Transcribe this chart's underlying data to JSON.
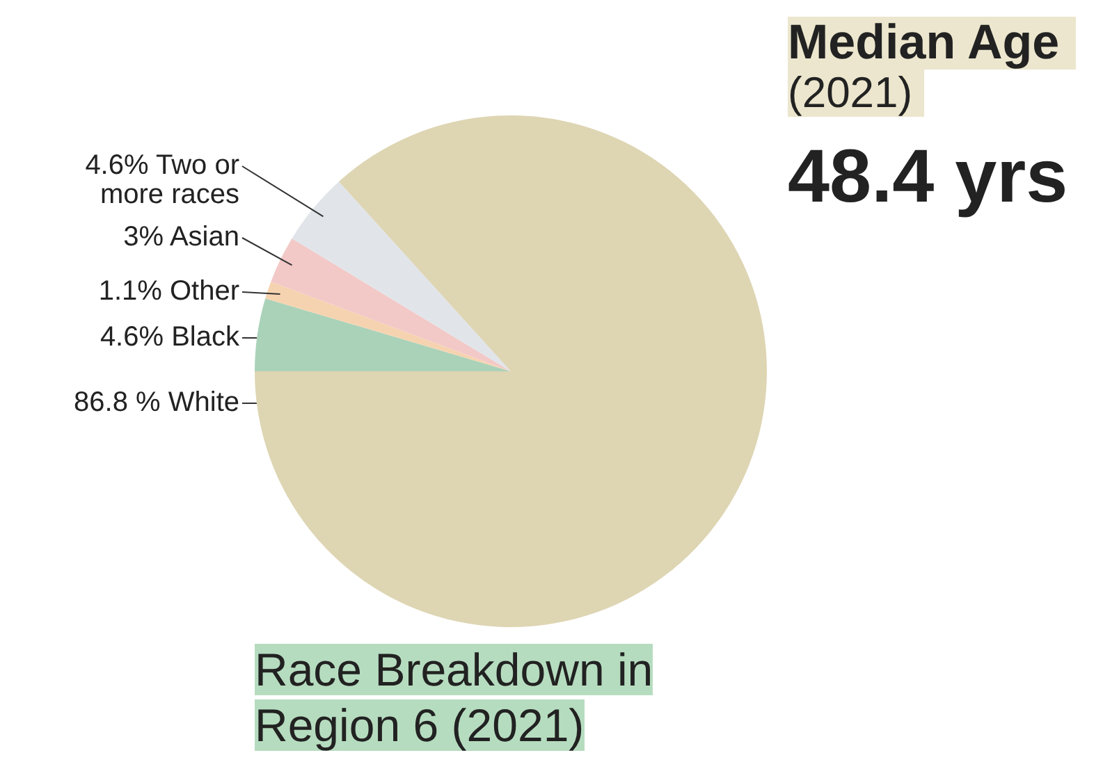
{
  "chart_data": {
    "type": "pie",
    "title": "Race Breakdown in Region 6 (2021)",
    "categories": [
      "Black",
      "Other",
      "Asian",
      "Two or more races",
      "White"
    ],
    "values": [
      4.6,
      1.1,
      3,
      4.6,
      86.8
    ],
    "value_labels": [
      "4.6%",
      "1.1%",
      "3%",
      "4.6%",
      "86.8 %"
    ],
    "colors": [
      "#aad2b9",
      "#f6d3b0",
      "#f2c9c7",
      "#e1e5ea",
      "#ded5b3"
    ],
    "annotations": [
      "Median Age",
      "(2021)",
      "48.4 yrs"
    ],
    "legend": false
  }
}
